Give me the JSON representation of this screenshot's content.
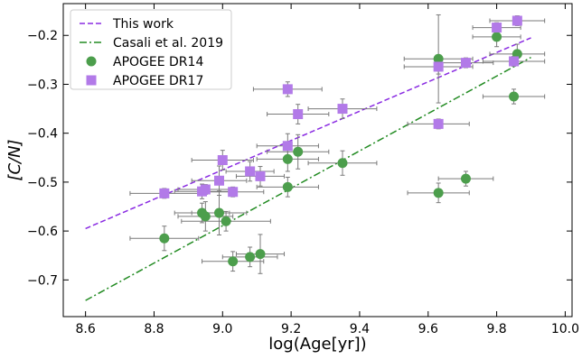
{
  "chart_data": {
    "type": "scatter",
    "xlabel": "log(Age[yr])",
    "ylabel": "[C/N]",
    "xlim": [
      8.535,
      10.02
    ],
    "ylim": [
      -0.775,
      -0.135
    ],
    "x_ticks": [
      8.6,
      8.8,
      9.0,
      9.2,
      9.4,
      9.6,
      9.8,
      10.0
    ],
    "x_tick_labels": [
      "8.6",
      "8.8",
      "9.0",
      "9.2",
      "9.4",
      "9.6",
      "9.8",
      "10.0"
    ],
    "y_ticks": [
      -0.7,
      -0.6,
      -0.5,
      -0.4,
      -0.3,
      -0.2
    ],
    "y_tick_labels": [
      "−0.7",
      "−0.6",
      "−0.5",
      "−0.4",
      "−0.3",
      "−0.2"
    ],
    "legend_position": "top-left",
    "grid": false,
    "series": [
      {
        "name": "This work",
        "kind": "line",
        "style": "dashed",
        "color": "#8a2be2",
        "x": [
          8.6,
          9.9
        ],
        "y": [
          -0.595,
          -0.205
        ]
      },
      {
        "name": "Casali et al. 2019",
        "kind": "line",
        "style": "dashdot",
        "color": "#228b22",
        "x": [
          8.6,
          9.9
        ],
        "y": [
          -0.742,
          -0.245
        ]
      },
      {
        "name": "APOGEE DR14",
        "kind": "points",
        "marker": "circle",
        "color": "#4c9e4c",
        "points": [
          {
            "x": 8.83,
            "y": -0.615,
            "xerr": 0.1,
            "yerr": 0.025
          },
          {
            "x": 8.94,
            "y": -0.563,
            "xerr": 0.08,
            "yerr": 0.02
          },
          {
            "x": 8.95,
            "y": -0.57,
            "xerr": 0.08,
            "yerr": 0.03
          },
          {
            "x": 8.99,
            "y": -0.563,
            "xerr": 0.08,
            "yerr": 0.045
          },
          {
            "x": 9.01,
            "y": -0.58,
            "xerr": 0.13,
            "yerr": 0.02
          },
          {
            "x": 9.03,
            "y": -0.662,
            "xerr": 0.09,
            "yerr": 0.02
          },
          {
            "x": 9.08,
            "y": -0.653,
            "xerr": 0.08,
            "yerr": 0.02
          },
          {
            "x": 9.11,
            "y": -0.647,
            "xerr": 0.07,
            "yerr": 0.04
          },
          {
            "x": 9.19,
            "y": -0.453,
            "xerr": 0.09,
            "yerr": 0.025
          },
          {
            "x": 9.19,
            "y": -0.51,
            "xerr": 0.09,
            "yerr": 0.02
          },
          {
            "x": 9.22,
            "y": -0.438,
            "xerr": 0.09,
            "yerr": 0.035
          },
          {
            "x": 9.35,
            "y": -0.461,
            "xerr": 0.1,
            "yerr": 0.025
          },
          {
            "x": 9.63,
            "y": -0.522,
            "xerr": 0.09,
            "yerr": 0.02
          },
          {
            "x": 9.63,
            "y": -0.248,
            "xerr": 0.1,
            "yerr": 0.09
          },
          {
            "x": 9.71,
            "y": -0.493,
            "xerr": 0.08,
            "yerr": 0.015
          },
          {
            "x": 9.8,
            "y": -0.203,
            "xerr": 0.07,
            "yerr": 0.02
          },
          {
            "x": 9.85,
            "y": -0.325,
            "xerr": 0.09,
            "yerr": 0.015
          },
          {
            "x": 9.86,
            "y": -0.238,
            "xerr": 0.08,
            "yerr": 0.02
          }
        ]
      },
      {
        "name": "APOGEE DR17",
        "kind": "points",
        "marker": "square",
        "color": "#b27ae8",
        "points": [
          {
            "x": 8.83,
            "y": -0.523,
            "xerr": 0.1,
            "yerr": 0.01
          },
          {
            "x": 8.94,
            "y": -0.519,
            "xerr": 0.08,
            "yerr": 0.015
          },
          {
            "x": 8.95,
            "y": -0.515,
            "xerr": 0.08,
            "yerr": 0.01
          },
          {
            "x": 8.99,
            "y": -0.497,
            "xerr": 0.08,
            "yerr": 0.03
          },
          {
            "x": 9.0,
            "y": -0.455,
            "xerr": 0.09,
            "yerr": 0.02
          },
          {
            "x": 9.03,
            "y": -0.52,
            "xerr": 0.09,
            "yerr": 0.01
          },
          {
            "x": 9.08,
            "y": -0.478,
            "xerr": 0.07,
            "yerr": 0.02
          },
          {
            "x": 9.11,
            "y": -0.488,
            "xerr": 0.07,
            "yerr": 0.02
          },
          {
            "x": 9.19,
            "y": -0.426,
            "xerr": 0.09,
            "yerr": 0.025
          },
          {
            "x": 9.19,
            "y": -0.31,
            "xerr": 0.1,
            "yerr": 0.015
          },
          {
            "x": 9.22,
            "y": -0.361,
            "xerr": 0.09,
            "yerr": 0.02
          },
          {
            "x": 9.35,
            "y": -0.35,
            "xerr": 0.1,
            "yerr": 0.02
          },
          {
            "x": 9.63,
            "y": -0.264,
            "xerr": 0.1,
            "yerr": 0.015
          },
          {
            "x": 9.63,
            "y": -0.381,
            "xerr": 0.09,
            "yerr": 0.01
          },
          {
            "x": 9.71,
            "y": -0.256,
            "xerr": 0.08,
            "yerr": 0.01
          },
          {
            "x": 9.8,
            "y": -0.184,
            "xerr": 0.07,
            "yerr": 0.01
          },
          {
            "x": 9.85,
            "y": -0.253,
            "xerr": 0.09,
            "yerr": 0.01
          },
          {
            "x": 9.86,
            "y": -0.17,
            "xerr": 0.08,
            "yerr": 0.01
          }
        ]
      }
    ]
  }
}
